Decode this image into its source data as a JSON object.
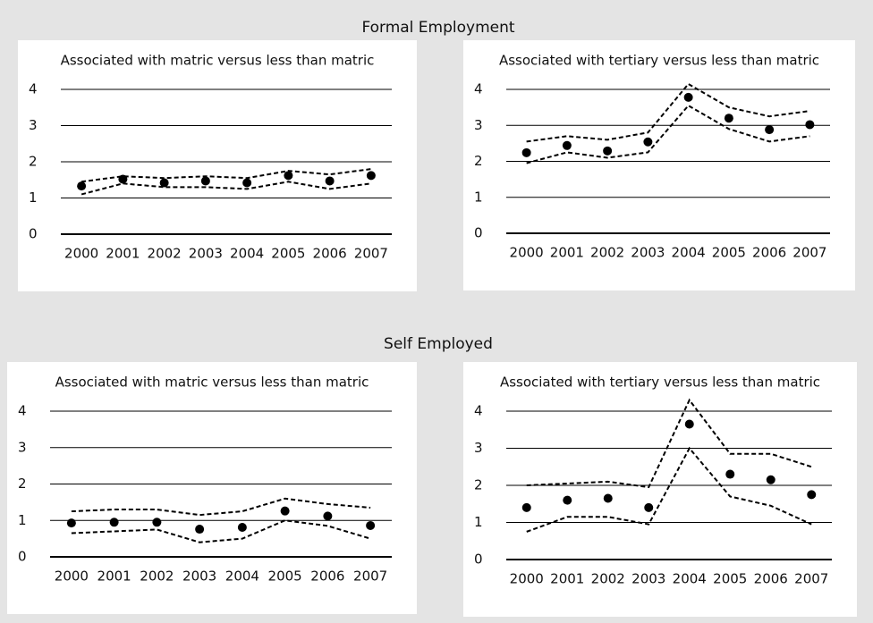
{
  "sections": [
    "Formal Employment",
    "Self Employed"
  ],
  "chart_data": [
    {
      "type": "line",
      "title": "Associated with matric versus less than matric",
      "categories": [
        "2000",
        "2001",
        "2002",
        "2003",
        "2004",
        "2005",
        "2006",
        "2007"
      ],
      "ylim": [
        0,
        4
      ],
      "yticks": [
        0,
        1,
        2,
        3,
        4
      ],
      "grid": true,
      "series": [
        {
          "style": "dashed",
          "color": "#000000",
          "values": [
            1.45,
            1.6,
            1.55,
            1.6,
            1.55,
            1.75,
            1.65,
            1.8
          ]
        },
        {
          "style": "markers",
          "color": "#000000",
          "values": [
            1.33,
            1.52,
            1.42,
            1.47,
            1.42,
            1.62,
            1.47,
            1.62
          ]
        },
        {
          "style": "dashed",
          "color": "#000000",
          "values": [
            1.1,
            1.4,
            1.3,
            1.3,
            1.25,
            1.45,
            1.25,
            1.4
          ]
        }
      ]
    },
    {
      "type": "line",
      "title": "Associated with tertiary versus less than matric",
      "categories": [
        "2000",
        "2001",
        "2002",
        "2003",
        "2004",
        "2005",
        "2006",
        "2007"
      ],
      "ylim": [
        0,
        4
      ],
      "yticks": [
        0,
        1,
        2,
        3,
        4
      ],
      "grid": true,
      "series": [
        {
          "style": "dashed",
          "color": "#000000",
          "values": [
            2.55,
            2.7,
            2.6,
            2.8,
            4.15,
            3.5,
            3.25,
            3.4
          ]
        },
        {
          "style": "markers",
          "color": "#000000",
          "values": [
            2.24,
            2.44,
            2.29,
            2.54,
            3.78,
            3.2,
            2.88,
            3.02
          ]
        },
        {
          "style": "dashed",
          "color": "#000000",
          "values": [
            1.95,
            2.25,
            2.1,
            2.25,
            3.55,
            2.9,
            2.55,
            2.7
          ]
        }
      ]
    },
    {
      "type": "line",
      "title": "Associated with matric versus less than matric",
      "categories": [
        "2000",
        "2001",
        "2002",
        "2003",
        "2004",
        "2005",
        "2006",
        "2007"
      ],
      "ylim": [
        0,
        4
      ],
      "yticks": [
        0,
        1,
        2,
        3,
        4
      ],
      "grid": true,
      "series": [
        {
          "style": "dashed",
          "color": "#000000",
          "values": [
            1.25,
            1.3,
            1.3,
            1.15,
            1.25,
            1.6,
            1.45,
            1.35
          ]
        },
        {
          "style": "markers",
          "color": "#000000",
          "values": [
            0.93,
            0.95,
            0.95,
            0.76,
            0.81,
            1.26,
            1.12,
            0.86
          ]
        },
        {
          "style": "dashed",
          "color": "#000000",
          "values": [
            0.65,
            0.7,
            0.75,
            0.4,
            0.5,
            1.0,
            0.85,
            0.5
          ]
        }
      ]
    },
    {
      "type": "line",
      "title": "Associated with tertiary versus less than matric",
      "categories": [
        "2000",
        "2001",
        "2002",
        "2003",
        "2004",
        "2005",
        "2006",
        "2007"
      ],
      "ylim": [
        0,
        4
      ],
      "yticks": [
        0,
        1,
        2,
        3,
        4
      ],
      "grid": true,
      "series": [
        {
          "style": "dashed",
          "color": "#000000",
          "values": [
            2.0,
            2.05,
            2.1,
            1.95,
            4.3,
            2.85,
            2.85,
            2.5
          ]
        },
        {
          "style": "markers",
          "color": "#000000",
          "values": [
            1.4,
            1.6,
            1.65,
            1.4,
            3.65,
            2.3,
            2.15,
            1.75
          ]
        },
        {
          "style": "dashed",
          "color": "#000000",
          "values": [
            0.75,
            1.15,
            1.15,
            0.95,
            3.0,
            1.7,
            1.45,
            0.95
          ]
        }
      ]
    }
  ]
}
